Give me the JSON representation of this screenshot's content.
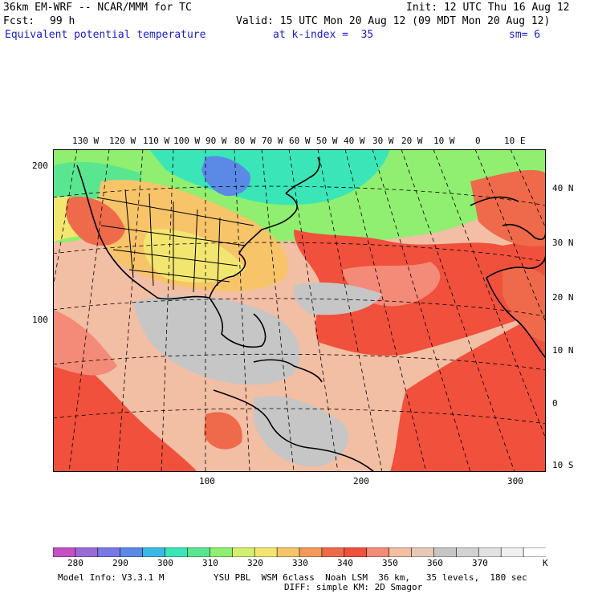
{
  "header": {
    "model_title": "36km EM-WRF -- NCAR/MMM for TC",
    "init": "Init: 12 UTC Thu 16 Aug 12",
    "fcst_label": "Fcst:",
    "fcst_value": "99 h",
    "valid": "Valid: 15 UTC Mon 20 Aug 12 (09 MDT Mon 20 Aug 12)",
    "field_name": "Equivalent potential temperature",
    "level": "at k-index =  35",
    "smoothing": "sm= 6"
  },
  "map": {
    "top_lon_labels": [
      "130 W",
      "120 W",
      "110 W",
      "100 W",
      "90 W",
      "80 W",
      "70 W",
      "60 W",
      "50 W",
      "40 W",
      "30 W",
      "20 W",
      "10 W",
      "0",
      "10 E"
    ],
    "right_lat_labels": [
      "40 N",
      "30 N",
      "20 N",
      "10 N",
      "0",
      "10 S"
    ],
    "left_grid_labels": [
      "200",
      "100"
    ],
    "bottom_grid_labels": [
      "100",
      "200",
      "300"
    ]
  },
  "colorbar": {
    "labels": [
      "280",
      "290",
      "300",
      "310",
      "320",
      "330",
      "340",
      "350",
      "360",
      "370"
    ],
    "unit": "K",
    "colors": [
      "#c64fc6",
      "#9a6ad6",
      "#7878e6",
      "#5a8ae6",
      "#3ab8e6",
      "#3ae6b8",
      "#5ae690",
      "#90ee70",
      "#d2f06e",
      "#f2e670",
      "#f7c46a",
      "#f49a58",
      "#ee6a4a",
      "#f0503c",
      "#f48a78",
      "#f2bea4",
      "#e6cab6",
      "#c6c6c6",
      "#d2d2d2",
      "#e2e2e2",
      "#f0f0f0",
      "#ffffff"
    ]
  },
  "footer": {
    "model_info": "Model Info: V3.3.1 M",
    "physics": "YSU PBL  WSM 6class  Noah LSM  36 km,   35 levels,  180 sec",
    "diff": "DIFF: simple KM: 2D Smagor"
  }
}
